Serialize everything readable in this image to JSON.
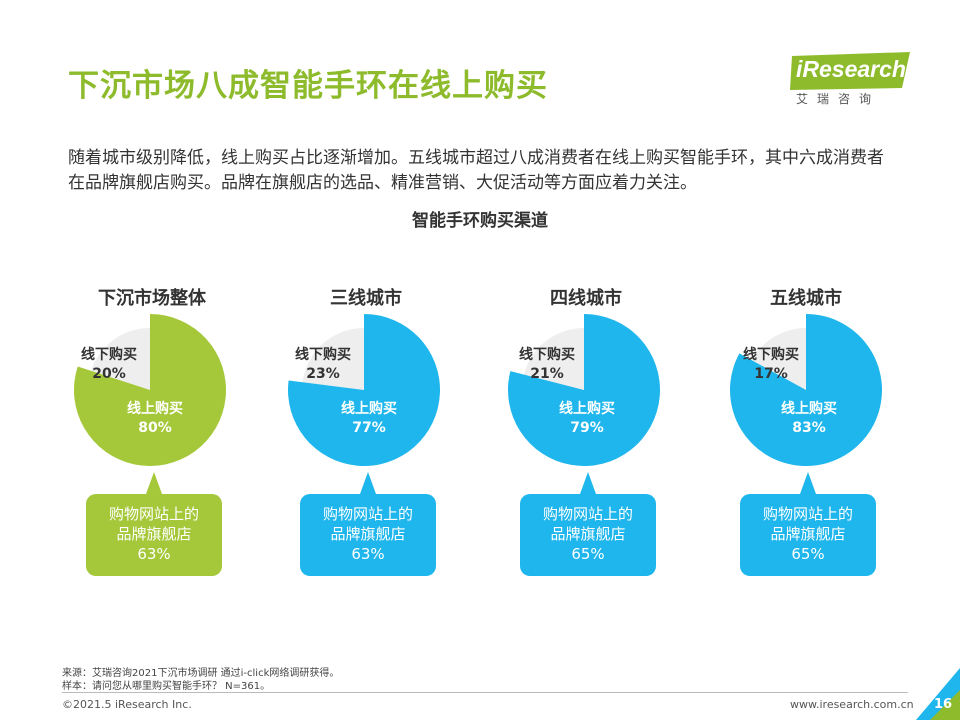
{
  "header": {
    "title": "下沉市场八成智能手环在线上购买",
    "logo_brand": "iResearch",
    "logo_sub": "艾瑞咨询"
  },
  "intro": "随着城市级别降低，线上购买占比逐渐增加。五线城市超过八成消费者在线上购买智能手环，其中六成消费者在品牌旗舰店购买。品牌在旗舰店的选品、精准营销、大促活动等方面应着力关注。",
  "chart_data": {
    "type": "pie",
    "title": "智能手环购买渠道",
    "slice_labels": [
      "线下购买",
      "线上购买"
    ],
    "charts": [
      {
        "name": "下沉市场整体",
        "offline_pct": "20%",
        "online_pct": "80%",
        "offline": 20,
        "online": 80,
        "flagship_label": "购物网站上的品牌旗舰店",
        "flagship_line1": "购物网站上的",
        "flagship_line2": "品牌旗舰店",
        "flagship_pct": "63%",
        "flagship": 63,
        "color": "#a5c83a"
      },
      {
        "name": "三线城市",
        "offline_pct": "23%",
        "online_pct": "77%",
        "offline": 23,
        "online": 77,
        "flagship_label": "购物网站上的品牌旗舰店",
        "flagship_line1": "购物网站上的",
        "flagship_line2": "品牌旗舰店",
        "flagship_pct": "63%",
        "flagship": 63,
        "color": "#1eb6ec"
      },
      {
        "name": "四线城市",
        "offline_pct": "21%",
        "online_pct": "79%",
        "offline": 21,
        "online": 79,
        "flagship_label": "购物网站上的品牌旗舰店",
        "flagship_line1": "购物网站上的",
        "flagship_line2": "品牌旗舰店",
        "flagship_pct": "65%",
        "flagship": 65,
        "color": "#1eb6ec"
      },
      {
        "name": "五线城市",
        "offline_pct": "17%",
        "online_pct": "83%",
        "offline": 17,
        "online": 83,
        "flagship_label": "购物网站上的品牌旗舰店",
        "flagship_line1": "购物网站上的",
        "flagship_line2": "品牌旗舰店",
        "flagship_pct": "65%",
        "flagship": 65,
        "color": "#1eb6ec"
      }
    ],
    "offline_color": "#eeeeee"
  },
  "footnotes": {
    "source": "来源：艾瑞咨询2021下沉市场调研 通过i-click网络调研获得。",
    "sample": "样本：请问您从哪里购买智能手环？ N=361。"
  },
  "footer": {
    "copyright": "©2021.5 iResearch Inc.",
    "website": "www.iresearch.com.cn",
    "page": "16"
  },
  "colors": {
    "green": "#8dbb2c",
    "blue": "#1eb6ec",
    "light_grey": "#eeeeee"
  }
}
